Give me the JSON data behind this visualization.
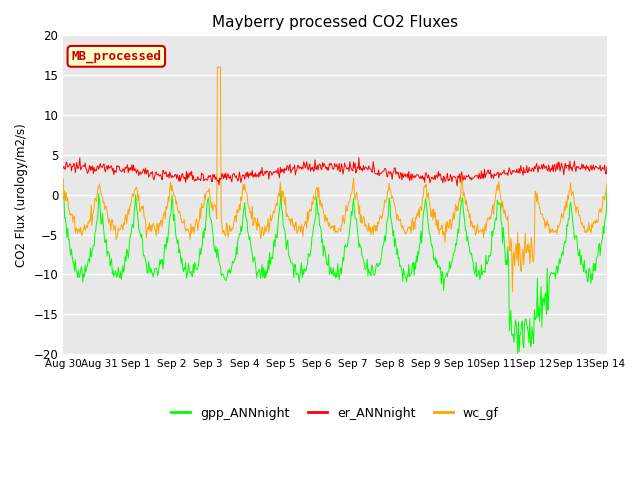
{
  "title": "Mayberry processed CO2 Fluxes",
  "ylabel": "CO2 Flux (urology/m2/s)",
  "ylim": [
    -20,
    20
  ],
  "yticks": [
    -20,
    -15,
    -10,
    -5,
    0,
    5,
    10,
    15,
    20
  ],
  "bg_color": "#e8e8e8",
  "line_colors": {
    "gpp": "#00ff00",
    "er": "#ff0000",
    "wc": "#ffa500"
  },
  "legend_label": "MB_processed",
  "legend_bg": "#ffffcc",
  "legend_border": "#cc0000",
  "series_labels": [
    "gpp_ANNnight",
    "er_ANNnight",
    "wc_gf"
  ],
  "tick_labels": [
    "Aug 30",
    "Aug 31",
    "Sep 1",
    "Sep 2",
    "Sep 3",
    "Sep 4",
    "Sep 5",
    "Sep 6",
    "Sep 7",
    "Sep 8",
    "Sep 9",
    "Sep 10",
    "Sep 11",
    "Sep 12",
    "Sep 13",
    "Sep 14"
  ],
  "n_days": 15
}
